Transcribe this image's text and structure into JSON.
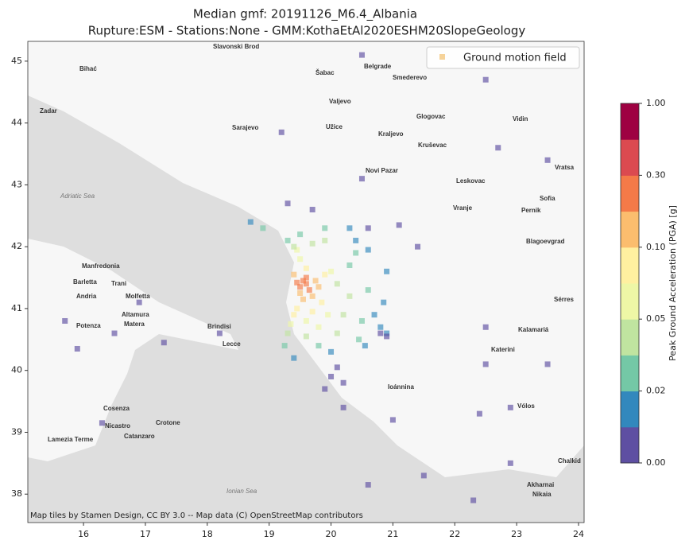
{
  "chart_data": {
    "type": "scatter",
    "title": "Median gmf: 20191126_M6.4_Albania",
    "subtitle": "Rupture:ESM -  Stations:None - GMM:KothaEtAl2020ESHM20SlopeGeology",
    "legend_label": "Ground motion field",
    "legend_color": "#f6d39a",
    "legend_position": "upper right",
    "colorbar_label": "Peak Ground Acceleration (PGA) [g]",
    "attribution": "Map tiles by Stamen Design, CC BY 3.0 -- Map data (C) OpenStreetMap contributors",
    "colors": [
      "#5e4fa2",
      "#3288bd",
      "#74c8a6",
      "#c0e4a0",
      "#eef7a6",
      "#fff0a0",
      "#fbbd6e",
      "#f47a48",
      "#db4a50",
      "#9e0142"
    ],
    "colorbar_ticks": [
      {
        "value": 0,
        "label": "0.00"
      },
      {
        "value": 0.02,
        "label": "0.02"
      },
      {
        "value": 0.05,
        "label": "0.05"
      },
      {
        "value": 0.1,
        "label": "0.10"
      },
      {
        "value": 0.3,
        "label": "0.30"
      },
      {
        "value": 1,
        "label": "1.00"
      }
    ],
    "xlim": [
      15.1,
      24.09
    ],
    "ylim": [
      37.54,
      45.32
    ],
    "xticks": [
      16,
      17,
      18,
      19,
      20,
      21,
      22,
      23,
      24
    ],
    "yticks": [
      38,
      39,
      40,
      41,
      42,
      43,
      44,
      45
    ],
    "places": [
      "Belgrade",
      "Sofia",
      "Sarajevo",
      "Zadar",
      "Bihać",
      "Slavonski Brod",
      "Šabac",
      "Smederevo",
      "Valjevo",
      "Užice",
      "Glogovac",
      "Kraljevo",
      "Kruševac",
      "Vidin",
      "Novi Pazar",
      "Leskovac",
      "Vratsa",
      "Vranje",
      "Pernik",
      "Blagoevgrad",
      "Manfredonia",
      "Barletta",
      "Trani",
      "Andria",
      "Molfetta",
      "Altamura",
      "Potenza",
      "Matera",
      "Brindisi",
      "Lecce",
      "Cosenza",
      "Crotone",
      "Nicastro",
      "Catanzaro",
      "Lamezia Terme",
      "Ioánnina",
      "Kalamariá",
      "Katerini",
      "Sérres",
      "Vólos",
      "Chalkid",
      "Akharnai",
      "Nikaia",
      "Adriatic Sea",
      "Ionian Sea"
    ],
    "x": [
      19.5,
      19.55,
      19.6,
      19.65,
      19.45,
      19.6,
      19.7,
      19.5,
      19.75,
      19.4,
      19.55,
      19.8,
      19.6,
      19.45,
      19.85,
      19.9,
      19.4,
      19.7,
      19.5,
      19.35,
      19.95,
      20.0,
      19.6,
      19.45,
      19.8,
      19.4,
      19.7,
      20.1,
      20.2,
      19.3,
      19.6,
      20.3,
      19.9,
      20.1,
      19.5,
      19.3,
      20.3,
      20.5,
      19.25,
      19.8,
      20.4,
      20.6,
      19.9,
      20.45,
      18.9,
      20.4,
      20.7,
      20.8,
      20.6,
      20.9,
      20.3,
      20.0,
      19.4,
      20.85,
      20.55,
      18.7,
      20.9,
      20.1,
      20.2,
      19.9,
      20.0,
      20.8,
      21.4,
      20.9,
      22.5,
      20.5,
      19.7,
      21.1,
      20.6,
      19.2,
      22.7,
      20.5,
      23.5,
      22.5,
      16.9,
      16.5,
      15.7,
      17.3,
      18.2,
      15.9,
      19.3,
      21.0,
      22.4,
      22.9,
      22.3,
      21.5,
      20.6,
      23.5,
      22.5,
      16.3,
      22.9,
      20.2
    ],
    "y": [
      41.35,
      41.45,
      41.4,
      41.3,
      41.42,
      41.5,
      41.2,
      41.25,
      41.45,
      41.55,
      41.15,
      41.35,
      41.65,
      41.0,
      41.1,
      41.55,
      40.9,
      40.95,
      41.8,
      40.75,
      40.9,
      41.6,
      40.8,
      41.95,
      40.7,
      42.0,
      42.05,
      41.4,
      40.9,
      40.6,
      40.55,
      41.2,
      42.1,
      40.6,
      42.2,
      42.1,
      41.7,
      40.8,
      40.4,
      40.4,
      41.9,
      41.3,
      42.3,
      40.5,
      42.3,
      42.1,
      40.9,
      40.7,
      41.95,
      40.6,
      42.3,
      40.3,
      40.2,
      41.1,
      40.4,
      42.4,
      41.6,
      40.05,
      39.8,
      39.7,
      39.9,
      40.6,
      42.0,
      40.55,
      40.7,
      43.1,
      42.6,
      42.35,
      42.3,
      43.85,
      43.6,
      45.1,
      43.4,
      44.7,
      41.1,
      40.6,
      40.8,
      40.45,
      40.6,
      40.35,
      42.7,
      39.2,
      39.3,
      39.4,
      37.9,
      38.3,
      38.15,
      40.1,
      40.1,
      39.15,
      38.5,
      39.4
    ],
    "values": [
      0.25,
      0.25,
      0.25,
      0.25,
      0.25,
      0.25,
      0.15,
      0.15,
      0.15,
      0.15,
      0.15,
      0.15,
      0.09,
      0.09,
      0.09,
      0.09,
      0.09,
      0.09,
      0.06,
      0.06,
      0.06,
      0.06,
      0.06,
      0.06,
      0.06,
      0.04,
      0.04,
      0.04,
      0.04,
      0.04,
      0.04,
      0.04,
      0.04,
      0.04,
      0.025,
      0.025,
      0.025,
      0.025,
      0.025,
      0.025,
      0.025,
      0.025,
      0.025,
      0.025,
      0.025,
      0.015,
      0.015,
      0.015,
      0.015,
      0.015,
      0.015,
      0.015,
      0.015,
      0.015,
      0.015,
      0.015,
      0.015,
      0.005,
      0.005,
      0.005,
      0.005,
      0.005,
      0.005,
      0.005,
      0.005,
      0.005,
      0.005,
      0.005,
      0.005,
      0.005,
      0.005,
      0.005,
      0.005,
      0.005,
      0.005,
      0.005,
      0.005,
      0.005,
      0.005,
      0.005,
      0.005,
      0.005,
      0.005,
      0.005,
      0.005,
      0.005,
      0.005,
      0.005,
      0.005,
      0.005,
      0.005,
      0.005
    ]
  }
}
